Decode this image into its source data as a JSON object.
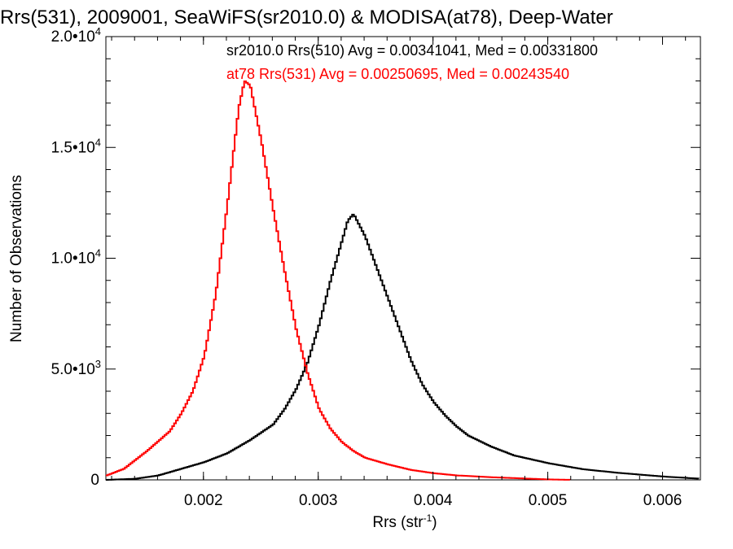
{
  "chart_data": {
    "type": "line",
    "title": "Rrs(531), 2009001, SeaWiFS(sr2010.0) & MODISA(at78), Deep-Water",
    "xlabel": "Rrs (str",
    "xlabel_sup": "-1",
    "xlabel_end": ")",
    "ylabel": "Number of Observations",
    "xlim": [
      0.00115,
      0.00633
    ],
    "ylim": [
      0,
      20000
    ],
    "xticks": [
      {
        "value": 0.002,
        "label": "0.002"
      },
      {
        "value": 0.003,
        "label": "0.003"
      },
      {
        "value": 0.004,
        "label": "0.004"
      },
      {
        "value": 0.005,
        "label": "0.005"
      },
      {
        "value": 0.006,
        "label": "0.006"
      }
    ],
    "yticks": [
      {
        "value": 0,
        "mant": "0",
        "exp": ""
      },
      {
        "value": 5000,
        "mant": "5.0•10",
        "exp": "3"
      },
      {
        "value": 10000,
        "mant": "1.0•10",
        "exp": "4"
      },
      {
        "value": 15000,
        "mant": "1.5•10",
        "exp": "4"
      },
      {
        "value": 20000,
        "mant": "2.0•10",
        "exp": "4"
      }
    ],
    "grid": false,
    "legend_position": "top-right",
    "series": [
      {
        "name": "sr2010.0 Rrs(510) Avg = 0.00341041, Med = 0.00331800",
        "color": "#000000",
        "x": [
          0.00115,
          0.0014,
          0.0016,
          0.0018,
          0.002,
          0.0022,
          0.0024,
          0.0026,
          0.0027,
          0.0028,
          0.0029,
          0.003,
          0.0031,
          0.0032,
          0.00325,
          0.0033,
          0.0034,
          0.0035,
          0.0036,
          0.0037,
          0.0038,
          0.0039,
          0.004,
          0.0041,
          0.0042,
          0.0043,
          0.0045,
          0.0047,
          0.005,
          0.0053,
          0.0056,
          0.006,
          0.00633
        ],
        "y": [
          0,
          50,
          200,
          500,
          800,
          1200,
          1800,
          2500,
          3200,
          4100,
          5300,
          7000,
          9000,
          10800,
          11700,
          12000,
          11000,
          9600,
          8200,
          6800,
          5400,
          4300,
          3500,
          2900,
          2400,
          2000,
          1500,
          1100,
          750,
          480,
          320,
          150,
          50
        ]
      },
      {
        "name": "at78 Rrs(531) Avg = 0.00250695, Med = 0.00243540",
        "color": "#ff0000",
        "x": [
          0.00115,
          0.0013,
          0.0015,
          0.0017,
          0.0018,
          0.0019,
          0.002,
          0.0021,
          0.0022,
          0.0023,
          0.00235,
          0.0024,
          0.0025,
          0.0026,
          0.0027,
          0.0028,
          0.0029,
          0.003,
          0.0031,
          0.0032,
          0.0033,
          0.0034,
          0.0036,
          0.0038,
          0.004,
          0.0042,
          0.0045,
          0.0048,
          0.005,
          0.0052
        ],
        "y": [
          200,
          500,
          1300,
          2200,
          3000,
          4000,
          5600,
          8400,
          12400,
          16800,
          18000,
          17800,
          15200,
          12200,
          9400,
          6800,
          4800,
          3200,
          2300,
          1700,
          1300,
          1000,
          700,
          450,
          300,
          200,
          120,
          60,
          20,
          0
        ]
      }
    ]
  }
}
